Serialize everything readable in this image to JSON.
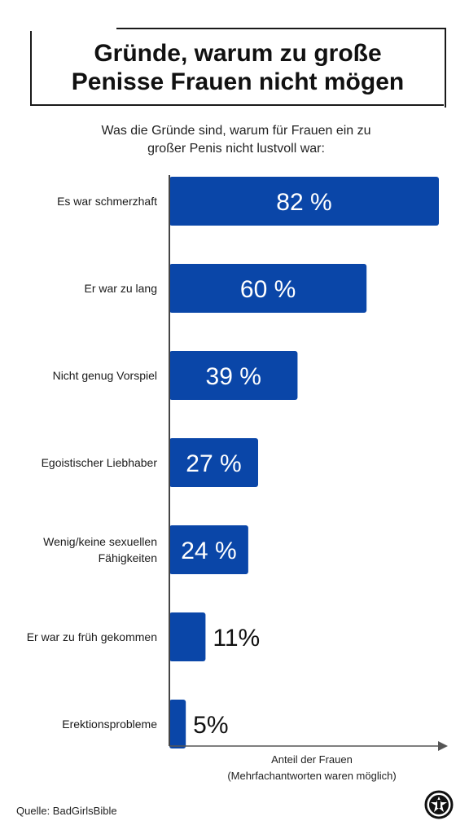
{
  "title": {
    "line1": "Gründe, warum zu große",
    "line2": "Penisse Frauen nicht mögen"
  },
  "subtitle": {
    "line1": "Was die Gründe sind, warum für Frauen ein zu",
    "line2": "großer Penis nicht lustvoll war:"
  },
  "chart_data": {
    "type": "bar",
    "orientation": "horizontal",
    "categories": [
      [
        "Es war schmerzhaft"
      ],
      [
        "Er war zu lang"
      ],
      [
        "Nicht genug Vorspiel"
      ],
      [
        "Egoistischer Liebhaber"
      ],
      [
        "Wenig/keine sexuellen",
        "Fähigkeiten"
      ],
      [
        "Er war zu früh gekommen"
      ],
      [
        "Erektionsprobleme"
      ]
    ],
    "values": [
      82,
      60,
      39,
      27,
      24,
      11,
      5
    ],
    "value_labels": [
      "82 %",
      "60 %",
      "39 %",
      "27 %",
      "24 %",
      "11%",
      "5%"
    ],
    "label_inside": [
      true,
      true,
      true,
      true,
      true,
      false,
      false
    ],
    "xlabel": "Anteil der Frauen",
    "xlabel_note": "(Mehrfachantworten waren möglich)",
    "xlim": [
      0,
      82
    ],
    "bar_color": "#0a46a8",
    "grid": false
  },
  "source": "Quelle: BadGirlsBible",
  "logo_icon": "bgb-logo-icon"
}
